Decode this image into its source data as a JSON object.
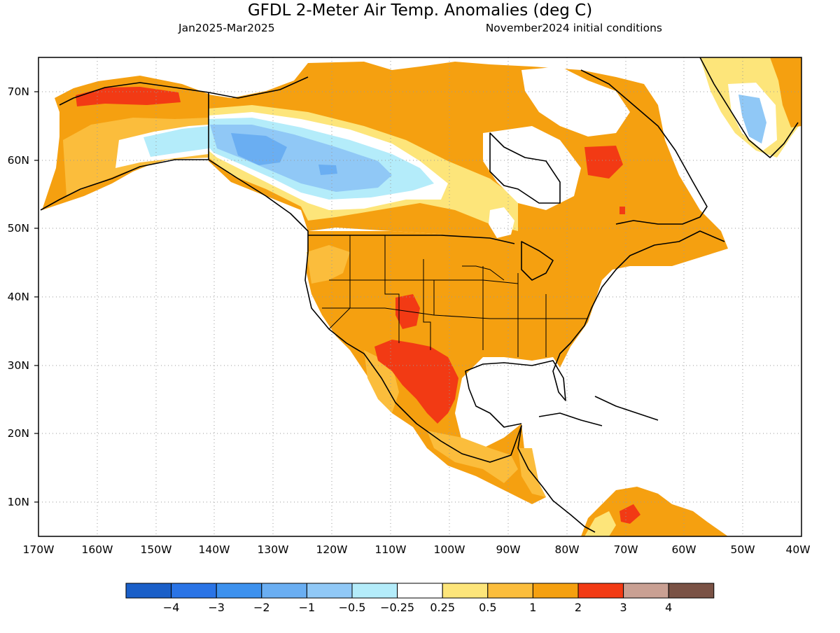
{
  "header": {
    "title": "GFDL 2-Meter Air Temp. Anomalies (deg C)",
    "period": "Jan2025-Mar2025",
    "initial_conditions": "November2024 initial conditions"
  },
  "map": {
    "region": "North America",
    "projection": "lat-lon",
    "lon_range": [
      -170,
      -40
    ],
    "lat_range": [
      5,
      75
    ],
    "lat_labels": [
      "70N",
      "60N",
      "50N",
      "40N",
      "30N",
      "20N",
      "10N"
    ],
    "lon_labels": [
      "170W",
      "160W",
      "150W",
      "140W",
      "130W",
      "120W",
      "110W",
      "100W",
      "90W",
      "80W",
      "70W",
      "60W",
      "50W",
      "40W"
    ],
    "grid": "dotted",
    "regions": [
      {
        "name": "western-alaska-coast",
        "anomaly_class": "2-3",
        "color": "#f23a14"
      },
      {
        "name": "yukon-interior",
        "anomaly_class": "-1 to -0.5",
        "color": "#9ed3f5"
      },
      {
        "name": "western-canada",
        "anomaly_class": "-2 to -1",
        "color": "#7ab8f2"
      },
      {
        "name": "central-usa",
        "anomaly_class": "1-2",
        "color": "#f5a010"
      },
      {
        "name": "southwest-usa",
        "anomaly_class": "2-3",
        "color": "#f23a14"
      },
      {
        "name": "quebec",
        "anomaly_class": "2-3",
        "color": "#f23a14"
      },
      {
        "name": "greenland-interior",
        "anomaly_class": "-1 to -0.5",
        "color": "#9ed3f5"
      }
    ]
  },
  "legend": {
    "labels": [
      "−4",
      "−3",
      "−2",
      "−1",
      "−0.5",
      "−0.25",
      "0.25",
      "0.5",
      "1",
      "2",
      "3",
      "4"
    ],
    "colors": [
      "#1a5fc8",
      "#2a74e6",
      "#3d91ee",
      "#6aaef2",
      "#90c8f6",
      "#b4ecfa",
      "#ffffff",
      "#fde57a",
      "#fbbd3c",
      "#f5a010",
      "#f23a14",
      "#c9a093",
      "#7a5245"
    ]
  }
}
